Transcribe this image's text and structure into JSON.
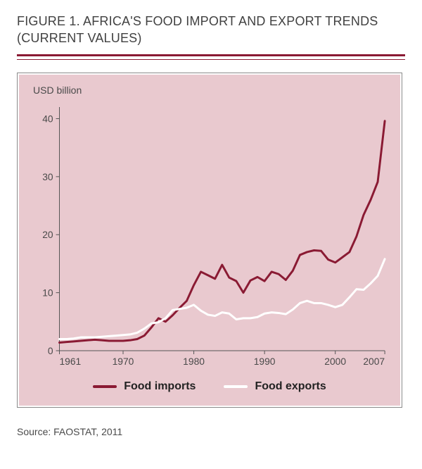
{
  "title_line1": "FIGURE 1. AFRICA'S FOOD IMPORT AND EXPORT TRENDS",
  "title_line2": "(CURRENT VALUES)",
  "source": "Source: FAOSTAT, 2011",
  "chart": {
    "type": "line",
    "ylabel": "USD billion",
    "background_color": "#e9c9cf",
    "frame_border_color": "#8a8a8a",
    "axis_color": "#555555",
    "tick_color": "#555555",
    "gridline_color": "#555555",
    "label_font_size": 14,
    "tick_font_size": 14,
    "axis_stroke_width": 1,
    "xlim": [
      1961,
      2007
    ],
    "ylim": [
      0,
      42
    ],
    "xticks": [
      1961,
      1970,
      1980,
      1990,
      2000,
      2007
    ],
    "xtick_labels": [
      "1961",
      "1970",
      "1980",
      "1990",
      "2000",
      "2007"
    ],
    "yticks": [
      0,
      10,
      20,
      30,
      40
    ],
    "ytick_labels": [
      "0",
      "10",
      "20",
      "30",
      "40"
    ],
    "line_width": 3,
    "series": [
      {
        "name": "Food imports",
        "color": "#8a1a33",
        "x": [
          1961,
          1962,
          1963,
          1964,
          1965,
          1966,
          1967,
          1968,
          1969,
          1970,
          1971,
          1972,
          1973,
          1974,
          1975,
          1976,
          1977,
          1978,
          1979,
          1980,
          1981,
          1982,
          1983,
          1984,
          1985,
          1986,
          1987,
          1988,
          1989,
          1990,
          1991,
          1992,
          1993,
          1994,
          1995,
          1996,
          1997,
          1998,
          1999,
          2000,
          2001,
          2002,
          2003,
          2004,
          2005,
          2006,
          2007
        ],
        "y": [
          1.4,
          1.5,
          1.6,
          1.7,
          1.8,
          1.9,
          1.8,
          1.7,
          1.7,
          1.7,
          1.8,
          2.0,
          2.6,
          4.0,
          5.6,
          5.0,
          6.1,
          7.4,
          8.6,
          11.3,
          13.6,
          13.0,
          12.4,
          14.8,
          12.6,
          12.0,
          10.0,
          12.1,
          12.7,
          12.0,
          13.6,
          13.2,
          12.2,
          13.8,
          16.5,
          17.0,
          17.3,
          17.2,
          15.7,
          15.2,
          16.1,
          17.0,
          19.7,
          23.4,
          26.0,
          29.1,
          39.6
        ]
      },
      {
        "name": "Food exports",
        "color": "#ffffff",
        "x": [
          1961,
          1962,
          1963,
          1964,
          1965,
          1966,
          1967,
          1968,
          1969,
          1970,
          1971,
          1972,
          1973,
          1974,
          1975,
          1976,
          1977,
          1978,
          1979,
          1980,
          1981,
          1982,
          1983,
          1984,
          1985,
          1986,
          1987,
          1988,
          1989,
          1990,
          1991,
          1992,
          1993,
          1994,
          1995,
          1996,
          1997,
          1998,
          1999,
          2000,
          2001,
          2002,
          2003,
          2004,
          2005,
          2006,
          2007
        ],
        "y": [
          2.0,
          2.0,
          2.1,
          2.3,
          2.3,
          2.3,
          2.4,
          2.5,
          2.6,
          2.7,
          2.8,
          3.1,
          3.8,
          4.7,
          4.9,
          5.6,
          7.0,
          7.2,
          7.4,
          7.9,
          6.9,
          6.2,
          6.0,
          6.6,
          6.4,
          5.4,
          5.6,
          5.6,
          5.8,
          6.4,
          6.6,
          6.5,
          6.3,
          7.1,
          8.2,
          8.6,
          8.2,
          8.2,
          7.9,
          7.5,
          7.9,
          9.2,
          10.6,
          10.5,
          11.6,
          12.9,
          15.8
        ]
      }
    ],
    "legend": {
      "items": [
        {
          "label": "Food imports",
          "color": "#8a1a33"
        },
        {
          "label": "Food exports",
          "color": "#ffffff"
        }
      ],
      "position": "bottom",
      "font_size": 16,
      "font_weight": 700
    }
  },
  "colors": {
    "title_text": "#414141",
    "rule": "#8a1a33",
    "page_background": "#ffffff",
    "source_text": "#4a4a4a"
  }
}
